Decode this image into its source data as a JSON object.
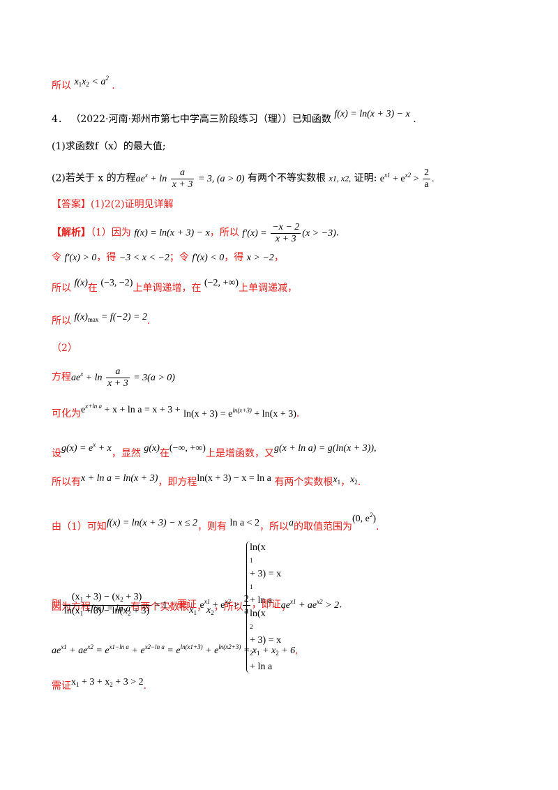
{
  "l1": {
    "prefix": "所以",
    "math": "x₁x₂ < a²",
    "suffix": "."
  },
  "problem": {
    "number": "4．",
    "source": "（2022·河南·郑州市第七中学高三阶段练习（理））已知函数",
    "func": "f(x) = ln(x + 3) − x",
    "end": "."
  },
  "q1": "(1)求函数f（x）的最大值;",
  "q2": {
    "prefix": "(2)若关于 x 的方程",
    "eq": "ae^x + ln a/(x+3) = 3, (a > 0)",
    "middle": "有两个不等实数根",
    "roots": "x1, x2,",
    "prove": "证明:",
    "claim": "e^x1 + e^x2 > 2/a ."
  },
  "answer": "【答案】(1)2(2)证明见详解",
  "analysis": {
    "tag": "【解析】",
    "p1": "（1）因为",
    "f": "f(x) = ln(x+3) − x",
    "p2": "，所以",
    "fp": "f′(x) = (−x−2)/(x+3) (x > −3)",
    "end": "."
  },
  "l_ling": {
    "a": "令",
    "b": "f′(x) > 0",
    "c": "，得",
    "d": "−3 < x < −2",
    "e": "；令",
    "f": "f′(x) < 0",
    "g": "，得",
    "h": "x > −2",
    "i": "，"
  },
  "l_mono": {
    "a": "所以",
    "b": "f(x)",
    "c": "在",
    "d": "(−3, −2)",
    "e": "上单调递增，在",
    "f": "(−2, +∞)",
    "g": "上单调递减，"
  },
  "l_max": {
    "a": "所以",
    "b": "f(x)max = f(−2) = 2",
    "c": "."
  },
  "part2": "（2）",
  "l_eq": {
    "a": "方程",
    "b": "ae^x + ln a/(x+3) = 3(a > 0)"
  },
  "l_ke": {
    "a": "可化为",
    "b": "e^(x+ln a) + x + ln a = x + 3 +",
    "c": "ln(x + 3) = e^ln(x+3) + ln(x + 3)",
    "d": "."
  },
  "l_she": {
    "a": "设",
    "b": "g(x) = e^x + x",
    "c": "，显然",
    "d": "g(x)",
    "e": "在",
    "f": "(−∞, +∞)",
    "g": "上是增函数，又",
    "h": "g(x + ln a) = g(ln(x+3)),",
    "i": ""
  },
  "l_you": {
    "a": "所以有",
    "b": "x + ln a = ln(x + 3)",
    "c": "，即方程",
    "d": "ln(x+3) − x = ln a",
    "e": "有两个实数根",
    "f": "x1",
    "g": "，",
    "h": "x2",
    "i": "."
  },
  "l_you1": {
    "a": "由（1）可知",
    "b": "f(x) = ln(x+3) − x ≤ 2",
    "c": "，则有",
    "d": "ln a < 2",
    "e": "，所以",
    "f": "a",
    "g": "的取值范围为",
    "h": "(0, e²)",
    "i": "."
  },
  "l_yinwei": {
    "a": "因为方程",
    "b": "f(x) = ln a",
    "c": "有两个实数根",
    "d": "x1",
    "e": "，",
    "f": "x2",
    "g": "，所以",
    "h1": "ln(x1 + 3) = x1 + ln a",
    "h2": "ln(x2 + 3) = x2 + ln a",
    "i": "，"
  },
  "l_ze": {
    "a": "则",
    "num": "(x1 + 3) − (x2 + 3)",
    "den": "ln(x1 + 3) − ln(x2 + 3)",
    "b": "= 1",
    "c": "，要证",
    "d": "e^x1 + e^x2 > 2/a",
    "e": "，即证",
    "f": "ae^x1 + ae^x2 > 2",
    "g": "."
  },
  "l_ae": {
    "a": "ae^x1 + ae^x2 = e^(x1−ln a) + e^(x2−ln a) = e^ln(x1+3) + e^ln(x2+3) = x1 + x2 + 6",
    "b": ","
  },
  "l_xu": {
    "a": "需证",
    "b": "x1 + 3 + x2 + 3 > 2",
    "c": "."
  }
}
